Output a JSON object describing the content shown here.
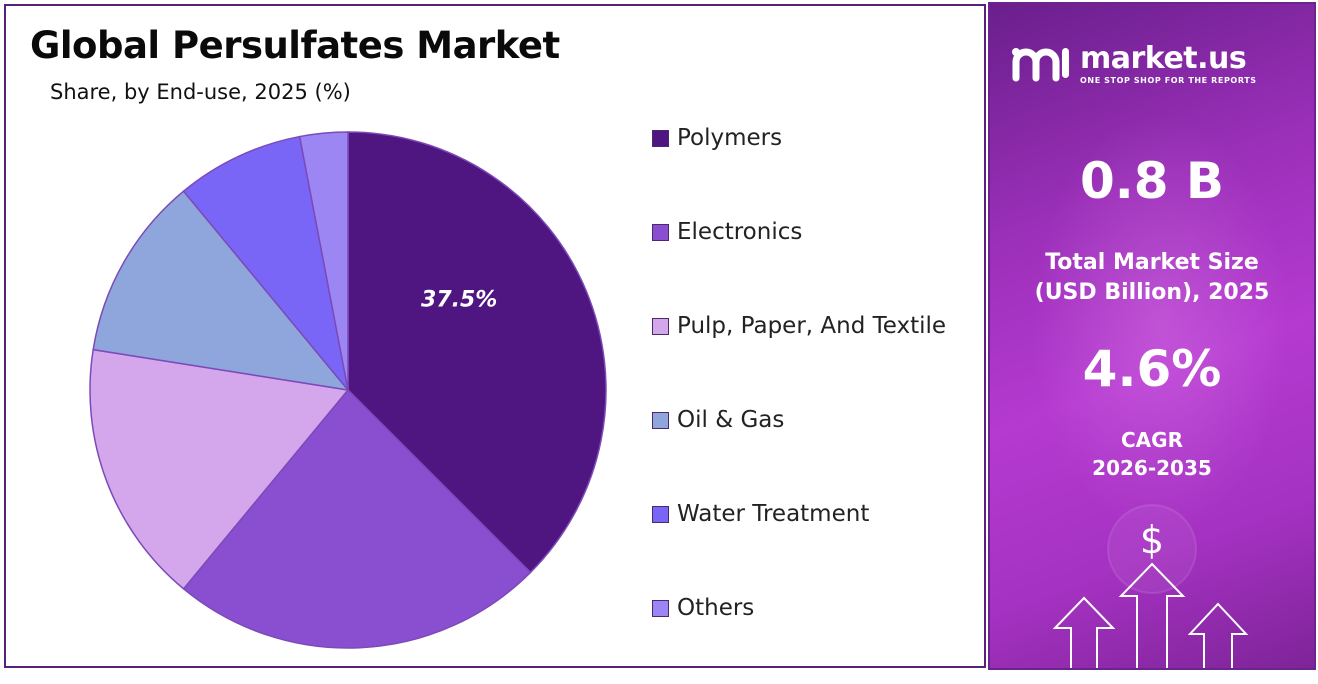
{
  "chart_data": {
    "type": "pie",
    "title": "Global Persulfates Market",
    "subtitle": "Share, by End-use, 2025 (%)",
    "slices": [
      {
        "name": "Polymers",
        "value": 37.5,
        "color": "#4f1580",
        "label": "37.5%"
      },
      {
        "name": "Electronics",
        "value": 23.5,
        "color": "#8a4fd0",
        "label": ""
      },
      {
        "name": "Pulp, Paper, And Textile",
        "value": 16.5,
        "color": "#d4a6ec",
        "label": ""
      },
      {
        "name": "Oil & Gas",
        "value": 11.5,
        "color": "#8fa6dc",
        "label": ""
      },
      {
        "name": "Water Treatment",
        "value": 8.0,
        "color": "#7a66f6",
        "label": ""
      },
      {
        "name": "Others",
        "value": 3.0,
        "color": "#9b86f4",
        "label": ""
      }
    ],
    "legend_position": "right"
  },
  "panel": {
    "brand_name": "market.us",
    "brand_tagline": "ONE STOP SHOP FOR THE REPORTS",
    "market_size_value": "0.8 B",
    "market_size_label_line1": "Total Market Size",
    "market_size_label_line2": "(USD Billion), 2025",
    "cagr_value": "4.6%",
    "cagr_label_line1": "CAGR",
    "cagr_label_line2": "2026-2035",
    "dollar_symbol": "$",
    "icons": [
      "market-us-logo-icon",
      "dollar-icon",
      "up-arrow-icon"
    ]
  }
}
